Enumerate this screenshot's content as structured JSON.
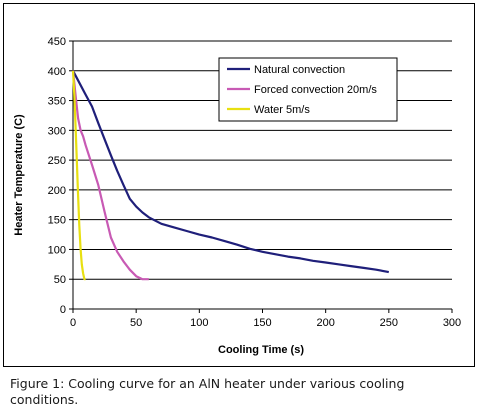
{
  "caption": "Figure 1: Cooling curve for an AlN heater under various cooling conditions.",
  "chart_data": {
    "type": "line",
    "title": "",
    "xlabel": "Cooling Time (s)",
    "ylabel": "Heater Temperature (C)",
    "xlim": [
      0,
      300
    ],
    "ylim": [
      0,
      450
    ],
    "x_ticks": [
      0,
      50,
      100,
      150,
      200,
      250,
      300
    ],
    "y_ticks": [
      0,
      50,
      100,
      150,
      200,
      250,
      300,
      350,
      400,
      450
    ],
    "grid": "horizontal",
    "legend_position": "top-right",
    "series": [
      {
        "name": "Natural convection",
        "color": "#1f1f7a",
        "points": [
          [
            0,
            400
          ],
          [
            5,
            380
          ],
          [
            10,
            360
          ],
          [
            15,
            340
          ],
          [
            20,
            312
          ],
          [
            25,
            285
          ],
          [
            30,
            258
          ],
          [
            35,
            232
          ],
          [
            40,
            208
          ],
          [
            45,
            185
          ],
          [
            50,
            172
          ],
          [
            55,
            162
          ],
          [
            60,
            154
          ],
          [
            70,
            143
          ],
          [
            80,
            137
          ],
          [
            90,
            131
          ],
          [
            100,
            125
          ],
          [
            110,
            120
          ],
          [
            120,
            114
          ],
          [
            130,
            108
          ],
          [
            140,
            101
          ],
          [
            150,
            96
          ],
          [
            160,
            92
          ],
          [
            170,
            88
          ],
          [
            180,
            85
          ],
          [
            190,
            81
          ],
          [
            200,
            78
          ],
          [
            210,
            75
          ],
          [
            220,
            72
          ],
          [
            230,
            69
          ],
          [
            240,
            66
          ],
          [
            250,
            62
          ]
        ]
      },
      {
        "name": "Forced convection 20m/s",
        "color": "#c85ab4",
        "points": [
          [
            0,
            400
          ],
          [
            2,
            360
          ],
          [
            4,
            320
          ],
          [
            6,
            300
          ],
          [
            8,
            290
          ],
          [
            10,
            275
          ],
          [
            15,
            242
          ],
          [
            20,
            208
          ],
          [
            25,
            163
          ],
          [
            30,
            120
          ],
          [
            35,
            96
          ],
          [
            40,
            80
          ],
          [
            45,
            66
          ],
          [
            50,
            55
          ],
          [
            55,
            50
          ],
          [
            60,
            50
          ]
        ]
      },
      {
        "name": "Water 5m/s",
        "color": "#e8e010",
        "points": [
          [
            0,
            400
          ],
          [
            1,
            360
          ],
          [
            2,
            310
          ],
          [
            3,
            250
          ],
          [
            4,
            190
          ],
          [
            5,
            140
          ],
          [
            6,
            100
          ],
          [
            7,
            75
          ],
          [
            8,
            60
          ],
          [
            9,
            50
          ],
          [
            10,
            50
          ]
        ]
      }
    ]
  }
}
